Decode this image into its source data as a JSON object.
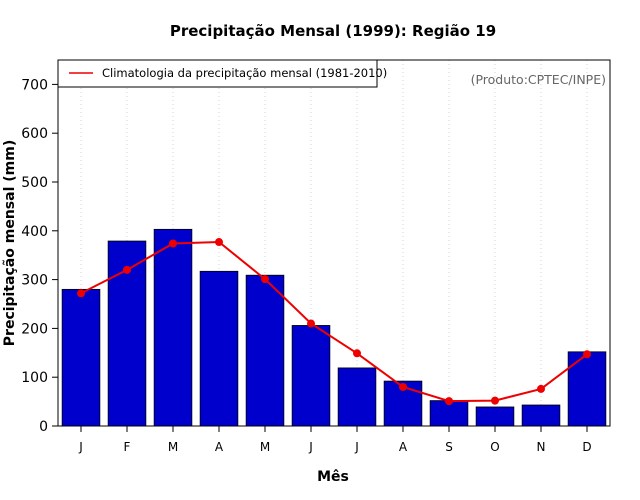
{
  "chart_data": {
    "type": "bar",
    "title": "Precipitação Mensal (1999): Região 19",
    "xlabel": "Mês",
    "ylabel": "Precipitação mensal (mm)",
    "categories": [
      "J",
      "F",
      "M",
      "A",
      "M",
      "J",
      "J",
      "A",
      "S",
      "O",
      "N",
      "D"
    ],
    "ylim": [
      0,
      750
    ],
    "yticks": [
      0,
      100,
      200,
      300,
      400,
      500,
      600,
      700
    ],
    "grid": "vertical dotted",
    "series": [
      {
        "name": "Precipitação mensal (1999)",
        "kind": "bar",
        "color": "#0000cc",
        "values": [
          280,
          379,
          403,
          317,
          309,
          206,
          119,
          92,
          52,
          39,
          43,
          152
        ]
      },
      {
        "name": "Climatologia da precipitação mensal (1981-2010)",
        "kind": "line",
        "color": "#ee0000",
        "values": [
          272,
          320,
          374,
          377,
          301,
          210,
          149,
          80,
          51,
          52,
          76,
          147
        ]
      }
    ],
    "legend": {
      "position": "top-left",
      "entries": [
        "Climatologia da precipitação mensal (1981-2010)"
      ]
    },
    "annotation": "(Produto:CPTEC/INPE)"
  }
}
